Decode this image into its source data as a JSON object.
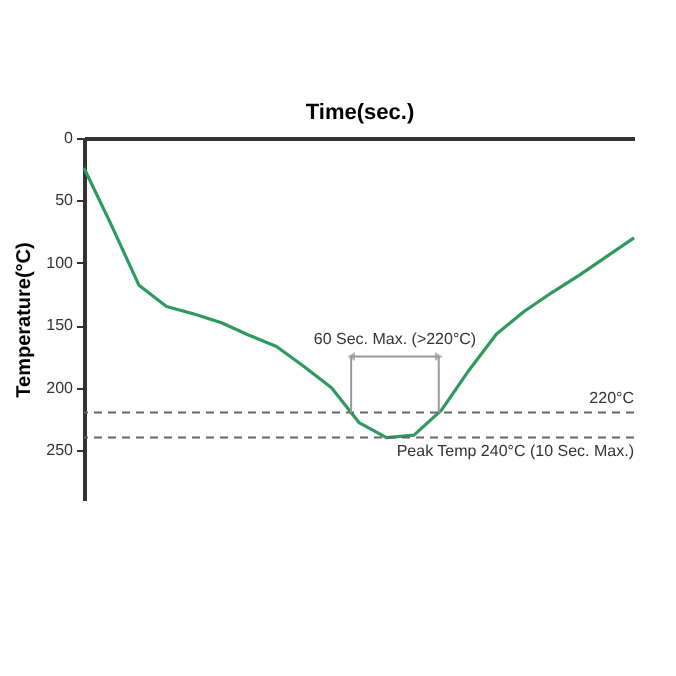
{
  "chart_data": {
    "type": "line",
    "xlabel": "Time(sec.)",
    "ylabel": "Temperature(°C)",
    "categories": [
      null,
      null,
      null,
      null,
      null,
      null,
      null,
      null,
      null,
      null,
      null,
      null,
      null,
      null,
      null,
      null,
      null,
      null,
      null,
      null,
      null
    ],
    "series": [
      {
        "color": "#2e9a5e",
        "values": [
          24,
          70,
          118,
          135,
          141,
          148,
          158,
          167,
          183,
          200,
          228,
          240,
          238,
          218,
          186,
          157,
          139,
          124,
          110,
          95,
          80
        ]
      }
    ],
    "ylim": [
      290,
      0
    ],
    "yticks": [
      0,
      50,
      100,
      150,
      200,
      250
    ],
    "grid": false,
    "ref_lines": [
      {
        "axis": "y",
        "value": 220,
        "label": "220°C",
        "color": "#666666",
        "line_style": "dashed"
      },
      {
        "axis": "y",
        "value": 240,
        "label": "Peak Temp 240°C (10 Sec. Max.)",
        "color": "#666666",
        "line_style": "dashed"
      }
    ],
    "annotations": [
      "60 Sec. Max. (>220°C)"
    ]
  }
}
